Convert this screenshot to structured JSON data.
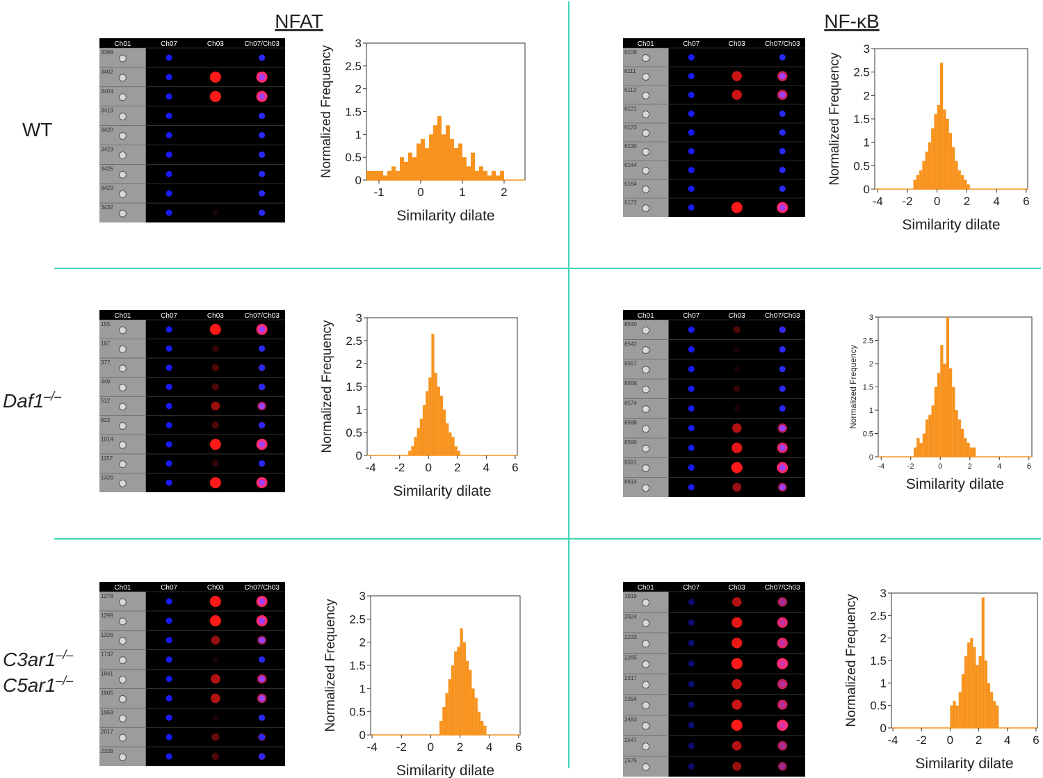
{
  "column_headers": [
    "NFAT",
    "NF-κB"
  ],
  "row_labels": [
    {
      "lines": [
        {
          "gene": "WT"
        }
      ]
    },
    {
      "lines": [
        {
          "gene": "Daf1",
          "sup": "–/–"
        }
      ]
    },
    {
      "lines": [
        {
          "gene": "C3ar1",
          "sup": "–/–"
        },
        {
          "gene": "C5ar1",
          "sup": "–/–"
        }
      ]
    }
  ],
  "image_panels": [
    {
      "channels": [
        "Ch01",
        "Ch07",
        "Ch03",
        "Ch07/Ch03"
      ],
      "cell_ids": [
        "3399",
        "3402",
        "3404",
        "3419",
        "3420",
        "3423",
        "3425",
        "3429",
        "3432"
      ]
    },
    {
      "channels": [
        "Ch01",
        "Ch07",
        "Ch03",
        "Ch07/Ch03"
      ],
      "cell_ids": [
        "6109",
        "6111",
        "6113",
        "6121",
        "6123",
        "6130",
        "6144",
        "6164",
        "6172"
      ]
    },
    {
      "channels": [
        "Ch01",
        "Ch07",
        "Ch03",
        "Ch07/Ch03"
      ],
      "cell_ids": [
        "155",
        "187",
        "377",
        "449",
        "512",
        "822",
        "1014",
        "1157",
        "1326"
      ]
    },
    {
      "channels": [
        "Ch01",
        "Ch07",
        "Ch03",
        "Ch07/Ch03"
      ],
      "cell_ids": [
        "8540",
        "8542",
        "8557",
        "8558",
        "8574",
        "8588",
        "8590",
        "8591",
        "8614"
      ]
    },
    {
      "channels": [
        "Ch01",
        "Ch07",
        "Ch03",
        "Ch07/Ch03"
      ],
      "cell_ids": [
        "1278",
        "1299",
        "1326",
        "1732",
        "1841",
        "1905",
        "1963",
        "2017",
        "2328"
      ]
    },
    {
      "channels": [
        "Ch01",
        "Ch07",
        "Ch03",
        "Ch07/Ch03"
      ],
      "cell_ids": [
        "1919",
        "2024",
        "2233",
        "2265",
        "2317",
        "2394",
        "2493",
        "2547",
        "2575"
      ]
    }
  ],
  "chart_data": [
    {
      "type": "histogram",
      "xlabel": "Similarity dilate",
      "ylabel": "Normalized Frequency",
      "color": "#f7931e",
      "bins": [
        -1.3,
        -1.2,
        -1.1,
        -1.0,
        -0.9,
        -0.8,
        -0.7,
        -0.6,
        -0.5,
        -0.4,
        -0.3,
        -0.2,
        -0.1,
        0.0,
        0.1,
        0.2,
        0.3,
        0.4,
        0.5,
        0.6,
        0.7,
        0.8,
        0.9,
        1.0,
        1.1,
        1.2,
        1.3,
        1.4,
        1.5,
        1.6,
        1.7,
        1.8,
        1.9,
        2.0
      ],
      "counts": [
        0.2,
        0.2,
        0.2,
        0.2,
        0.1,
        0.2,
        0.3,
        0.2,
        0.5,
        0.4,
        0.6,
        0.5,
        0.8,
        0.9,
        0.7,
        1.0,
        1.2,
        1.4,
        1.0,
        1.2,
        0.9,
        0.7,
        0.8,
        0.5,
        0.3,
        0.6,
        0.2,
        0.3,
        0.2,
        0.1,
        0.2,
        0.1,
        0.2
      ],
      "xlim": [
        -1.3,
        2.5
      ],
      "ylim": [
        0,
        3
      ],
      "xticks": [
        -1,
        0,
        1,
        2
      ],
      "yticks": [
        0,
        0.5,
        1,
        1.5,
        2,
        2.5,
        3
      ]
    },
    {
      "type": "histogram",
      "xlabel": "Similarity dilate",
      "ylabel": "Normalized Frequency",
      "color": "#f7931e",
      "bins": [
        -1.6,
        -1.4,
        -1.2,
        -1.0,
        -0.8,
        -0.6,
        -0.4,
        -0.2,
        0.0,
        0.2,
        0.4,
        0.6,
        0.8,
        1.0,
        1.2,
        1.4,
        1.6,
        1.8,
        2.0,
        2.2
      ],
      "counts": [
        0.2,
        0.3,
        0.4,
        0.6,
        0.8,
        1.0,
        1.3,
        1.6,
        1.8,
        2.7,
        1.7,
        1.5,
        1.2,
        0.9,
        0.6,
        0.4,
        0.3,
        0.2,
        0.1
      ],
      "xlim": [
        -4.2,
        6.1
      ],
      "ylim": [
        0,
        3
      ],
      "xticks": [
        -4,
        -2,
        0,
        2,
        4,
        6
      ],
      "yticks": [
        0,
        0.5,
        1,
        1.5,
        2,
        2.5,
        3
      ]
    },
    {
      "type": "histogram",
      "xlabel": "Similarity dilate",
      "ylabel": "Normalized Frequency",
      "color": "#f7931e",
      "bins": [
        -1.4,
        -1.2,
        -1.0,
        -0.8,
        -0.6,
        -0.4,
        -0.2,
        0.0,
        0.2,
        0.4,
        0.6,
        0.8,
        1.0,
        1.2,
        1.4,
        1.6,
        1.8,
        2.0,
        2.2
      ],
      "counts": [
        0.1,
        0.2,
        0.4,
        0.6,
        0.8,
        1.1,
        1.4,
        1.7,
        2.65,
        1.8,
        1.5,
        1.3,
        1.0,
        0.7,
        0.5,
        0.4,
        0.2,
        0.1
      ],
      "xlim": [
        -4.25,
        6.15
      ],
      "ylim": [
        0,
        3
      ],
      "xticks": [
        -4,
        -2,
        0,
        2,
        4,
        6
      ],
      "yticks": [
        0,
        0.5,
        1,
        1.5,
        2,
        2.5,
        3
      ]
    },
    {
      "type": "histogram",
      "xlabel": "Similarity dilate",
      "ylabel": "Normalized Frequency",
      "color": "#f7931e",
      "bins": [
        -1.8,
        -1.6,
        -1.4,
        -1.2,
        -1.0,
        -0.8,
        -0.6,
        -0.4,
        -0.2,
        0.0,
        0.2,
        0.4,
        0.6,
        0.8,
        1.0,
        1.2,
        1.4,
        1.6,
        1.8,
        2.0,
        2.2,
        2.4
      ],
      "counts": [
        0.2,
        0.4,
        0.3,
        0.5,
        0.8,
        0.9,
        1.1,
        1.5,
        1.8,
        2.4,
        2.0,
        3.0,
        1.9,
        1.5,
        1.0,
        0.8,
        0.6,
        0.4,
        0.3,
        0.2,
        0.2
      ],
      "xlim": [
        -4.2,
        6.2
      ],
      "ylim": [
        0,
        3
      ],
      "xticks": [
        -4,
        -2,
        0,
        2,
        4,
        6
      ],
      "yticks": [
        0,
        0.5,
        1,
        1.5,
        2,
        2.5,
        3
      ]
    },
    {
      "type": "histogram",
      "xlabel": "Similarity dilate",
      "ylabel": "Normalized Frequency",
      "color": "#f7931e",
      "bins": [
        0.6,
        0.8,
        1.0,
        1.2,
        1.4,
        1.6,
        1.8,
        2.0,
        2.2,
        2.4,
        2.6,
        2.8,
        3.0,
        3.2,
        3.4,
        3.6,
        3.8
      ],
      "counts": [
        0.3,
        0.6,
        0.9,
        1.2,
        1.5,
        1.8,
        1.9,
        2.3,
        2.0,
        1.6,
        1.4,
        1.0,
        0.8,
        0.5,
        0.3,
        0.2
      ],
      "xlim": [
        -4.1,
        6.1
      ],
      "ylim": [
        0,
        3
      ],
      "xticks": [
        -4,
        -2,
        0,
        2,
        4,
        6
      ],
      "yticks": [
        0,
        0.5,
        1,
        1.5,
        2,
        2.5,
        3
      ]
    },
    {
      "type": "histogram",
      "xlabel": "Similarity dilate",
      "ylabel": "Normalized Frequency",
      "color": "#f7931e",
      "bins": [
        0.0,
        0.2,
        0.4,
        0.6,
        0.8,
        1.0,
        1.2,
        1.4,
        1.6,
        1.8,
        2.0,
        2.2,
        2.4,
        2.6,
        2.8,
        3.0,
        3.2,
        3.4
      ],
      "counts": [
        0.5,
        0.6,
        0.5,
        0.8,
        1.2,
        1.6,
        1.9,
        2.0,
        1.8,
        1.4,
        1.6,
        2.9,
        1.5,
        1.0,
        0.8,
        0.6,
        0.5
      ],
      "xlim": [
        -4.1,
        6.1
      ],
      "ylim": [
        0,
        3
      ],
      "xticks": [
        -4,
        -2,
        0,
        2,
        4,
        6
      ],
      "yticks": [
        0,
        0.5,
        1,
        1.5,
        2,
        2.5,
        3
      ]
    }
  ]
}
